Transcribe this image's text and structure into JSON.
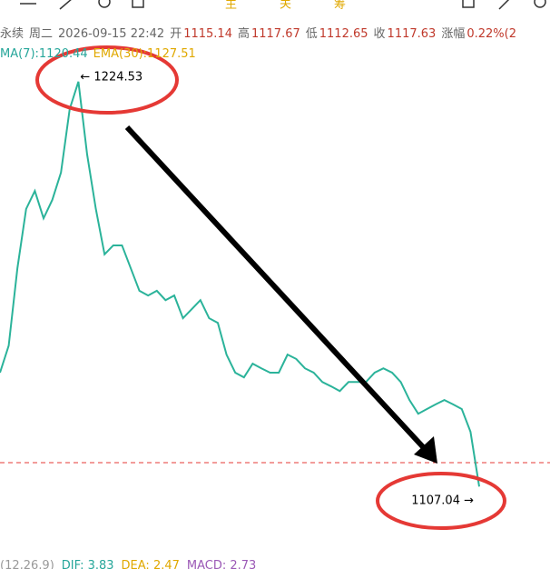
{
  "toolbar": [
    "主",
    "关",
    "筹"
  ],
  "header": {
    "items": [
      {
        "label": "永续"
      },
      {
        "label": "周二"
      },
      {
        "label": "2026-09-15 22:42"
      },
      {
        "label": "开",
        "value": 1115.14
      },
      {
        "label": "高",
        "value": 1117.67
      },
      {
        "label": "低",
        "value": 1112.65
      },
      {
        "label": "收",
        "value": 1117.63
      },
      {
        "label": "涨幅",
        "value": "0.22%(2"
      }
    ]
  },
  "indicators": [
    {
      "text": "MA(7):1120.44",
      "color": "#26a69a"
    },
    {
      "text": "EMA(30):1127.51",
      "color": "#e0a800"
    }
  ],
  "macd": [
    {
      "text": "(12,26,9)",
      "color": "#999999"
    },
    {
      "text": "DIF: 3.83",
      "color": "#26a69a"
    },
    {
      "text": "DEA: 2.47",
      "color": "#e0a800"
    },
    {
      "text": "MACD: 2.73",
      "color": "#9b59b6"
    }
  ],
  "chart_data": {
    "type": "line",
    "color": "#2bb39a",
    "values": [
      1142.6,
      1150.1,
      1171.6,
      1188.0,
      1193.0,
      1185.4,
      1190.5,
      1198.1,
      1215.7,
      1223.3,
      1203.1,
      1188.0,
      1175.4,
      1177.9,
      1177.9,
      1171.6,
      1165.3,
      1164.0,
      1165.3,
      1162.7,
      1164.0,
      1157.7,
      1160.2,
      1162.7,
      1157.7,
      1156.4,
      1147.6,
      1142.6,
      1141.3,
      1145.1,
      1143.8,
      1142.6,
      1142.6,
      1147.6,
      1146.4,
      1143.8,
      1142.6,
      1140.0,
      1138.8,
      1137.5,
      1140.0,
      1140.0,
      1140.0,
      1142.6,
      1143.8,
      1142.6,
      1140.0,
      1135.0,
      1131.2,
      1132.5,
      1133.8,
      1135.0,
      1133.8,
      1132.5,
      1126.2,
      1111.0
    ],
    "ylim": [
      1094.7,
      1228.3
    ],
    "current_price": 1117.63,
    "high": {
      "label": "← 1224.53",
      "value": 1224.53
    },
    "low": {
      "label": "1107.04 →",
      "value": 1107.04
    }
  }
}
